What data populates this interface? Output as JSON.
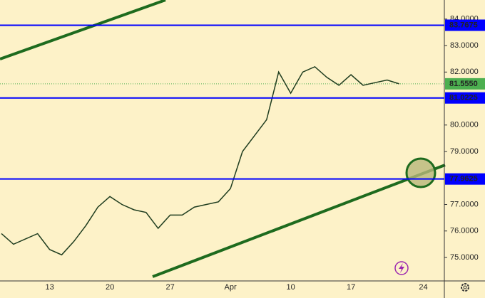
{
  "chart_data": {
    "type": "line",
    "categories": [
      null,
      null,
      null,
      null,
      "13",
      null,
      null,
      null,
      null,
      "20",
      null,
      null,
      null,
      null,
      "27",
      null,
      null,
      null,
      null,
      "Apr",
      null,
      null,
      null,
      null,
      "10",
      null,
      null,
      null,
      null,
      "17",
      null,
      null,
      null,
      null,
      null,
      "24",
      null
    ],
    "series": [
      {
        "color": "#1f3d1f",
        "values": [
          75.9,
          75.5,
          75.7,
          75.9,
          75.3,
          75.1,
          75.6,
          76.2,
          76.9,
          77.3,
          77.0,
          76.8,
          76.7,
          76.1,
          76.6,
          76.6,
          76.9,
          77.0,
          77.1,
          77.6,
          79.0,
          79.6,
          80.2,
          82.0,
          81.2,
          82.0,
          82.2,
          81.8,
          81.5,
          81.9,
          81.5,
          81.6,
          81.7,
          81.555,
          null,
          null,
          null
        ]
      }
    ],
    "ylim": [
      73.98,
      84.72
    ],
    "yticks": [
      {
        "value": 75,
        "label": "75.0000"
      },
      {
        "value": 76,
        "label": "76.0000"
      },
      {
        "value": 77,
        "label": "77.0000"
      },
      {
        "value": 79,
        "label": "79.0000"
      },
      {
        "value": 80,
        "label": "80.0000"
      },
      {
        "value": 82,
        "label": "82.0000"
      },
      {
        "value": 83,
        "label": "83.0000"
      },
      {
        "value": 84,
        "label": "84.0000"
      }
    ],
    "hlines": [
      83.7675,
      81.0225,
      77.9625
    ],
    "hline_color": "#0000ff",
    "last_price": {
      "value": 81.555,
      "label": "81.5550"
    },
    "last_price_color": "#4caf50"
  }
}
